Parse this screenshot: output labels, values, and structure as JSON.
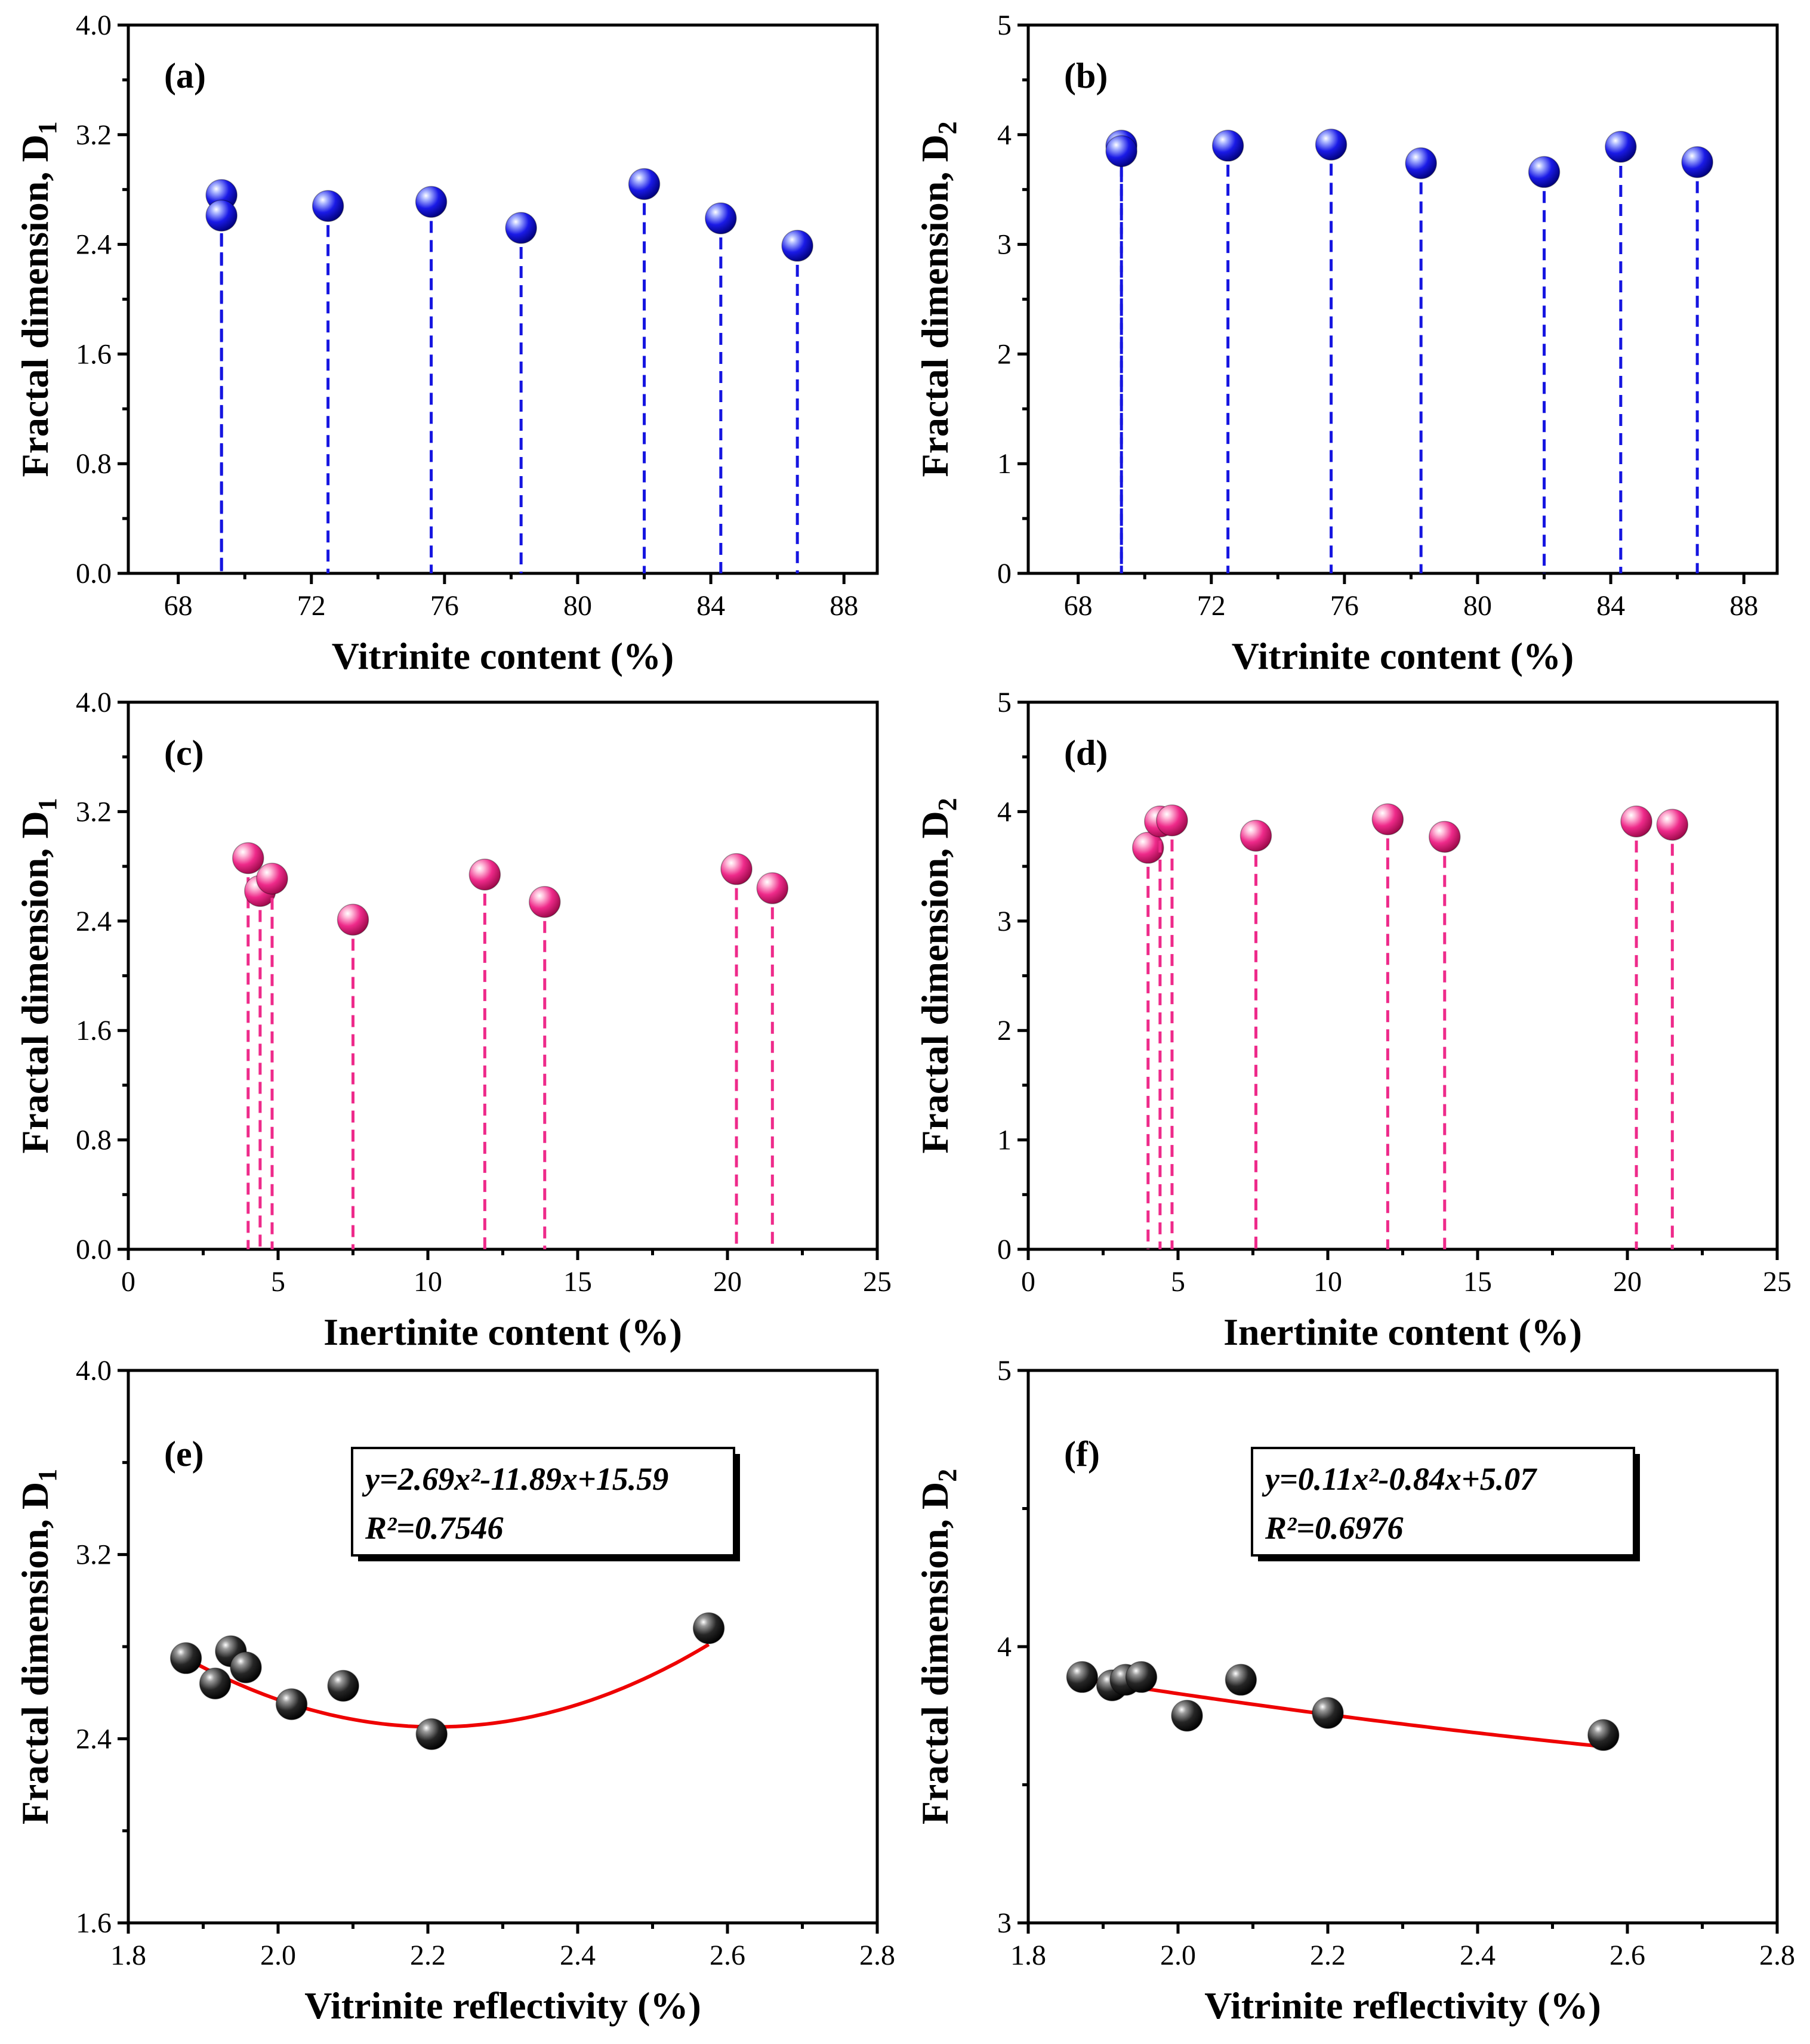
{
  "colors": {
    "vitrinite_marker": "#1515e0",
    "inertinite_marker": "#ee2a8a",
    "reflectivity_marker": "#111111",
    "fit_line": "#ee0000"
  },
  "chart_data": [
    {
      "panel": "(a)",
      "type": "scatter",
      "style": "drop-lines",
      "xlabel": "Vitrinite content (%)",
      "ylabel": "Fractal dimension, D",
      "ylabel_sub": "1",
      "xlim": [
        66.5,
        89
      ],
      "ylim": [
        0,
        4
      ],
      "xticks": [
        68,
        72,
        76,
        80,
        84,
        88
      ],
      "yticks": [
        0.0,
        0.8,
        1.6,
        2.4,
        3.2,
        4.0
      ],
      "ytick_labels": [
        "0.0",
        "0.8",
        "1.6",
        "2.4",
        "3.2",
        "4.0"
      ],
      "marker_color": "#1515e0",
      "points": [
        {
          "x": 69.3,
          "y": 2.76
        },
        {
          "x": 69.3,
          "y": 2.61
        },
        {
          "x": 72.5,
          "y": 2.68
        },
        {
          "x": 75.6,
          "y": 2.71
        },
        {
          "x": 78.3,
          "y": 2.52
        },
        {
          "x": 82.0,
          "y": 2.84
        },
        {
          "x": 84.3,
          "y": 2.59
        },
        {
          "x": 86.6,
          "y": 2.39
        }
      ]
    },
    {
      "panel": "(b)",
      "type": "scatter",
      "style": "drop-lines",
      "xlabel": "Vitrinite content (%)",
      "ylabel": "Fractal dimension, D",
      "ylabel_sub": "2",
      "xlim": [
        66.5,
        89
      ],
      "ylim": [
        0,
        5
      ],
      "xticks": [
        68,
        72,
        76,
        80,
        84,
        88
      ],
      "yticks": [
        0,
        1,
        2,
        3,
        4,
        5
      ],
      "ytick_labels": [
        "0",
        "1",
        "2",
        "3",
        "4",
        "5"
      ],
      "marker_color": "#1515e0",
      "points": [
        {
          "x": 69.3,
          "y": 3.9
        },
        {
          "x": 69.3,
          "y": 3.85
        },
        {
          "x": 72.5,
          "y": 3.9
        },
        {
          "x": 75.6,
          "y": 3.91
        },
        {
          "x": 78.3,
          "y": 3.74
        },
        {
          "x": 82.0,
          "y": 3.66
        },
        {
          "x": 84.3,
          "y": 3.89
        },
        {
          "x": 86.6,
          "y": 3.75
        }
      ]
    },
    {
      "panel": "(c)",
      "type": "scatter",
      "style": "drop-lines",
      "xlabel": "Inertinite content (%)",
      "ylabel": "Fractal dimension, D",
      "ylabel_sub": "1",
      "xlim": [
        0,
        25
      ],
      "ylim": [
        0,
        4
      ],
      "xticks": [
        0,
        5,
        10,
        15,
        20,
        25
      ],
      "yticks": [
        0.0,
        0.8,
        1.6,
        2.4,
        3.2,
        4.0
      ],
      "ytick_labels": [
        "0.0",
        "0.8",
        "1.6",
        "2.4",
        "3.2",
        "4.0"
      ],
      "marker_color": "#ee2a8a",
      "points": [
        {
          "x": 4.0,
          "y": 2.86
        },
        {
          "x": 4.4,
          "y": 2.62
        },
        {
          "x": 4.8,
          "y": 2.71
        },
        {
          "x": 7.5,
          "y": 2.41
        },
        {
          "x": 11.9,
          "y": 2.74
        },
        {
          "x": 13.9,
          "y": 2.54
        },
        {
          "x": 20.3,
          "y": 2.78
        },
        {
          "x": 21.5,
          "y": 2.64
        }
      ]
    },
    {
      "panel": "(d)",
      "type": "scatter",
      "style": "drop-lines",
      "xlabel": "Inertinite content (%)",
      "ylabel": "Fractal dimension, D",
      "ylabel_sub": "2",
      "xlim": [
        0,
        25
      ],
      "ylim": [
        0,
        5
      ],
      "xticks": [
        0,
        5,
        10,
        15,
        20,
        25
      ],
      "yticks": [
        0,
        1,
        2,
        3,
        4,
        5
      ],
      "ytick_labels": [
        "0",
        "1",
        "2",
        "3",
        "4",
        "5"
      ],
      "marker_color": "#ee2a8a",
      "points": [
        {
          "x": 4.0,
          "y": 3.67
        },
        {
          "x": 4.4,
          "y": 3.91
        },
        {
          "x": 4.8,
          "y": 3.92
        },
        {
          "x": 7.6,
          "y": 3.78
        },
        {
          "x": 12.0,
          "y": 3.93
        },
        {
          "x": 13.9,
          "y": 3.77
        },
        {
          "x": 20.3,
          "y": 3.91
        },
        {
          "x": 21.5,
          "y": 3.88
        }
      ]
    },
    {
      "panel": "(e)",
      "type": "scatter",
      "style": "fit",
      "xlabel": "Vitrinite reflectivity (%)",
      "ylabel": "Fractal dimension, D",
      "ylabel_sub": "1",
      "xlim": [
        1.8,
        2.8
      ],
      "ylim": [
        1.6,
        4.0
      ],
      "xticks": [
        1.8,
        2.0,
        2.2,
        2.4,
        2.6,
        2.8
      ],
      "xtick_labels": [
        "1.8",
        "2.0",
        "2.2",
        "2.4",
        "2.6",
        "2.8"
      ],
      "yticks": [
        1.6,
        2.4,
        3.2,
        4.0
      ],
      "ytick_labels": [
        "1.6",
        "2.4",
        "3.2",
        "4.0"
      ],
      "marker_color": "#111111",
      "points": [
        {
          "x": 1.877,
          "y": 2.75
        },
        {
          "x": 1.916,
          "y": 2.64
        },
        {
          "x": 1.937,
          "y": 2.78
        },
        {
          "x": 1.957,
          "y": 2.71
        },
        {
          "x": 2.018,
          "y": 2.55
        },
        {
          "x": 2.087,
          "y": 2.63
        },
        {
          "x": 2.205,
          "y": 2.42
        },
        {
          "x": 2.575,
          "y": 2.88
        }
      ],
      "fit": {
        "type": "quadratic",
        "coefficients": [
          2.69,
          -11.89,
          15.59
        ],
        "color": "#ee0000",
        "x_range": [
          1.877,
          2.575
        ]
      },
      "equation_lines": [
        "y=2.69x²-11.89x+15.59",
        "R²=0.7546"
      ]
    },
    {
      "panel": "(f)",
      "type": "scatter",
      "style": "fit",
      "xlabel": "Vitrinite reflectivity (%)",
      "ylabel": "Fractal dimension, D",
      "ylabel_sub": "2",
      "xlim": [
        1.8,
        2.8
      ],
      "ylim": [
        3,
        5
      ],
      "xticks": [
        1.8,
        2.0,
        2.2,
        2.4,
        2.6,
        2.8
      ],
      "xtick_labels": [
        "1.8",
        "2.0",
        "2.2",
        "2.4",
        "2.6",
        "2.8"
      ],
      "yticks": [
        3,
        4,
        5
      ],
      "ytick_labels": [
        "3",
        "4",
        "5"
      ],
      "marker_color": "#111111",
      "points": [
        {
          "x": 1.872,
          "y": 3.89
        },
        {
          "x": 1.912,
          "y": 3.86
        },
        {
          "x": 1.93,
          "y": 3.88
        },
        {
          "x": 1.951,
          "y": 3.89
        },
        {
          "x": 2.012,
          "y": 3.75
        },
        {
          "x": 2.084,
          "y": 3.88
        },
        {
          "x": 2.2,
          "y": 3.76
        },
        {
          "x": 2.568,
          "y": 3.68
        }
      ],
      "fit": {
        "type": "quadratic",
        "coefficients": [
          0.11,
          -0.84,
          5.07
        ],
        "color": "#ee0000",
        "x_range": [
          1.872,
          2.568
        ]
      },
      "equation_lines": [
        "y=0.11x²-0.84x+5.07",
        "R²=0.6976"
      ]
    }
  ]
}
